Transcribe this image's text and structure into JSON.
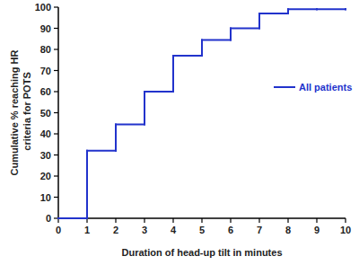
{
  "chart_data": {
    "type": "line",
    "line_style": "step",
    "x_label": "Duration of head-up tilt in minutes",
    "y_label": "Cumulative % reaching HR criteria for POTS",
    "x": [
      0,
      1,
      2,
      3,
      4,
      5,
      6,
      7,
      8,
      9,
      10
    ],
    "series": [
      {
        "name": "All patients",
        "color": "#2233cc",
        "values": [
          0,
          32,
          44.5,
          60,
          77,
          84.5,
          90,
          97,
          99,
          99,
          99
        ]
      }
    ],
    "xlim": [
      0,
      10
    ],
    "xticks": [
      0,
      1,
      2,
      3,
      4,
      5,
      6,
      7,
      8,
      9,
      10
    ],
    "ylim": [
      0,
      100
    ],
    "yticks": [
      0,
      10,
      20,
      30,
      40,
      50,
      60,
      70,
      80,
      90,
      100
    ],
    "grid": false,
    "legend": "right"
  }
}
